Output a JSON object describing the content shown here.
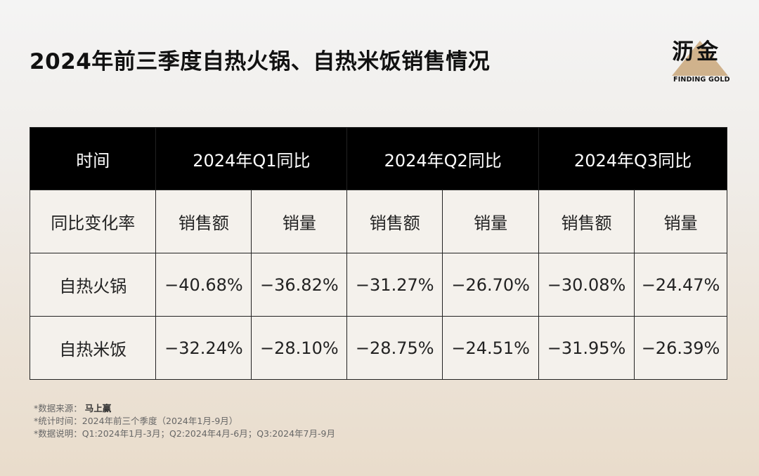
{
  "title": "2024年前三季度自热火锅、自热米饭销售情况",
  "logo": {
    "cn": "沥金",
    "en": "FINDING GOLD"
  },
  "chart_data": {
    "type": "table",
    "title": "2024年前三季度自热火锅、自热米饭销售情况",
    "header": [
      "时间",
      "2024年Q1同比",
      "2024年Q2同比",
      "2024年Q3同比"
    ],
    "subheader": [
      "同比变化率",
      "销售额",
      "销量",
      "销售额",
      "销量",
      "销售额",
      "销量"
    ],
    "rows": [
      {
        "label": "自热火锅",
        "values": [
          "−40.68%",
          "−36.82%",
          "−31.27%",
          "−26.70%",
          "−30.08%",
          "−24.47%"
        ]
      },
      {
        "label": "自热米饭",
        "values": [
          "−32.24%",
          "−28.10%",
          "−28.75%",
          "−24.51%",
          "−31.95%",
          "−26.39%"
        ]
      }
    ]
  },
  "notes": {
    "source_label": "*数据来源：",
    "source_brand": "马上赢",
    "time": "*统计时间：2024年前三个季度（2024年1月-9月）",
    "desc": "*数据说明：Q1:2024年1月-3月；Q2:2024年4月-6月；Q3:2024年7月-9月"
  }
}
